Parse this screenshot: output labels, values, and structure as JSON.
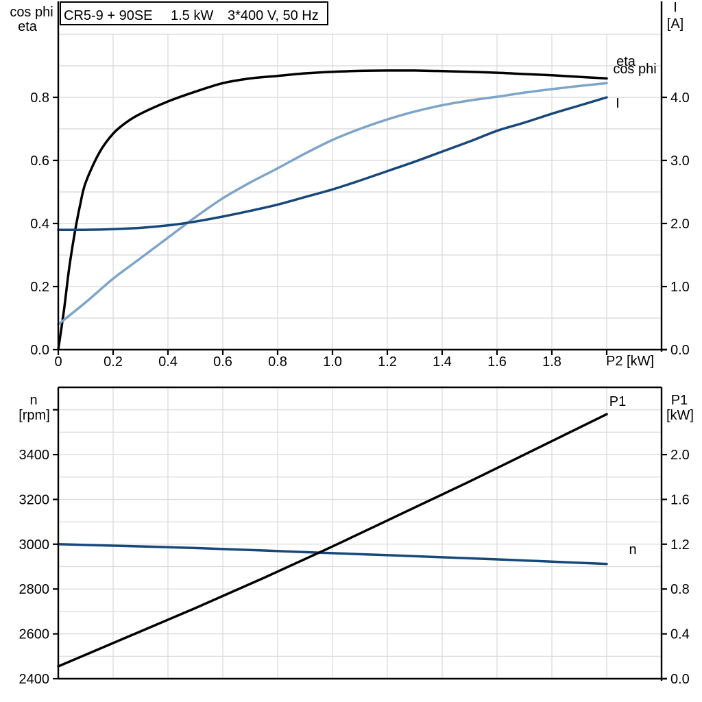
{
  "title_box": {
    "model": "CR5-9 + 90SE",
    "power": "1.5 kW",
    "voltage": "3*400 V, 50 Hz"
  },
  "colors": {
    "eta": "#000000",
    "cos_phi": "#7da4c9",
    "current": "#17487b",
    "speed": "#17487b",
    "p1": "#000000",
    "grid": "#d8d8d8",
    "axis": "#000000"
  },
  "chart_data": [
    {
      "id": "motor-efficiency-chart",
      "type": "line",
      "title": "CR5-9 + 90SE   1.5 kW   3*400 V, 50 Hz",
      "xlabel": "P2 [kW]",
      "ylabel_left": [
        "cos phi",
        "eta"
      ],
      "ylabel_right": [
        "I",
        "[A]"
      ],
      "xlim": [
        0,
        2.2
      ],
      "ylim_left": [
        0,
        1.0
      ],
      "ylim_right": [
        0,
        5.0
      ],
      "legend_position": "curve-end-labels",
      "grid": true,
      "x_ticks": [
        {
          "v": 0.0,
          "label": "0"
        },
        {
          "v": 0.2,
          "label": "0.2"
        },
        {
          "v": 0.4,
          "label": "0.4"
        },
        {
          "v": 0.6,
          "label": "0.6"
        },
        {
          "v": 0.8,
          "label": "0.8"
        },
        {
          "v": 1.0,
          "label": "1.0"
        },
        {
          "v": 1.2,
          "label": "1.2"
        },
        {
          "v": 1.4,
          "label": "1.4"
        },
        {
          "v": 1.6,
          "label": "1.6"
        },
        {
          "v": 1.8,
          "label": "1.8"
        },
        {
          "v": 2.0,
          "label": ""
        }
      ],
      "left_ticks": [
        {
          "v": 0.0,
          "label": "0.0"
        },
        {
          "v": 0.2,
          "label": "0.2"
        },
        {
          "v": 0.4,
          "label": "0.4"
        },
        {
          "v": 0.6,
          "label": "0.6"
        },
        {
          "v": 0.8,
          "label": "0.8"
        }
      ],
      "right_ticks": [
        {
          "v": 0.0,
          "label": "0.0"
        },
        {
          "v": 1.0,
          "label": "1.0"
        },
        {
          "v": 2.0,
          "label": "2.0"
        },
        {
          "v": 3.0,
          "label": "3.0"
        },
        {
          "v": 4.0,
          "label": "4.0"
        }
      ],
      "grid_x": [
        0.2,
        0.4,
        0.6,
        0.8,
        1.0,
        1.2,
        1.4,
        1.6,
        1.8,
        2.0
      ],
      "grid_y_left": [
        0.1,
        0.2,
        0.3,
        0.4,
        0.5,
        0.6,
        0.7,
        0.8,
        0.9,
        1.0
      ],
      "series": [
        {
          "name": "eta",
          "label": "eta",
          "axis": "left",
          "color_key": "eta",
          "x": [
            0,
            0.02,
            0.04,
            0.06,
            0.08,
            0.1,
            0.15,
            0.2,
            0.25,
            0.3,
            0.4,
            0.5,
            0.6,
            0.7,
            0.8,
            0.9,
            1.0,
            1.1,
            1.2,
            1.3,
            1.4,
            1.5,
            1.6,
            1.7,
            1.8,
            1.9,
            2.0
          ],
          "y": [
            0,
            0.12,
            0.26,
            0.37,
            0.46,
            0.53,
            0.625,
            0.685,
            0.722,
            0.748,
            0.787,
            0.818,
            0.845,
            0.86,
            0.868,
            0.876,
            0.881,
            0.884,
            0.885,
            0.885,
            0.883,
            0.881,
            0.878,
            0.874,
            0.87,
            0.865,
            0.86
          ]
        },
        {
          "name": "cos phi",
          "label": "cos phi",
          "axis": "left",
          "color_key": "cos_phi",
          "x": [
            0,
            0.1,
            0.2,
            0.3,
            0.4,
            0.5,
            0.6,
            0.7,
            0.8,
            0.9,
            1.0,
            1.1,
            1.2,
            1.3,
            1.4,
            1.5,
            1.6,
            1.7,
            1.8,
            1.9,
            2.0
          ],
          "y": [
            0.08,
            0.15,
            0.225,
            0.29,
            0.355,
            0.42,
            0.48,
            0.53,
            0.575,
            0.622,
            0.665,
            0.7,
            0.73,
            0.755,
            0.775,
            0.79,
            0.802,
            0.815,
            0.826,
            0.836,
            0.845
          ]
        },
        {
          "name": "I",
          "label": "I",
          "axis": "right",
          "color_key": "current",
          "x": [
            0,
            0.1,
            0.2,
            0.3,
            0.4,
            0.5,
            0.6,
            0.7,
            0.8,
            0.9,
            1.0,
            1.1,
            1.2,
            1.3,
            1.4,
            1.5,
            1.6,
            1.7,
            1.8,
            1.9,
            2.0
          ],
          "y": [
            1.9,
            1.9,
            1.91,
            1.93,
            1.97,
            2.03,
            2.11,
            2.2,
            2.3,
            2.42,
            2.54,
            2.68,
            2.83,
            2.98,
            3.14,
            3.3,
            3.47,
            3.6,
            3.74,
            3.87,
            4.0
          ]
        }
      ]
    },
    {
      "id": "speed-power-chart",
      "type": "line",
      "title": "",
      "xlabel": "",
      "ylabel_left": [
        "n",
        "[rpm]"
      ],
      "ylabel_right": [
        "P1",
        "[kW]"
      ],
      "xlim": [
        0,
        2.2
      ],
      "ylim_left": [
        2400,
        3700
      ],
      "ylim_right": [
        0,
        2.6
      ],
      "legend_position": "curve-end-labels",
      "grid": true,
      "x_ticks": [],
      "left_ticks": [
        {
          "v": 2400,
          "label": "2400"
        },
        {
          "v": 2600,
          "label": "2600"
        },
        {
          "v": 2800,
          "label": "2800"
        },
        {
          "v": 3000,
          "label": "3000"
        },
        {
          "v": 3200,
          "label": "3200"
        },
        {
          "v": 3400,
          "label": "3400"
        },
        {
          "v": 3600,
          "label": ""
        }
      ],
      "right_ticks": [
        {
          "v": 0.0,
          "label": "0.0"
        },
        {
          "v": 0.4,
          "label": "0.4"
        },
        {
          "v": 0.8,
          "label": "0.8"
        },
        {
          "v": 1.2,
          "label": "1.2"
        },
        {
          "v": 1.6,
          "label": "1.6"
        },
        {
          "v": 2.0,
          "label": "2.0"
        }
      ],
      "grid_x": [
        0.2,
        0.4,
        0.6,
        0.8,
        1.0,
        1.2,
        1.4,
        1.6,
        1.8,
        2.0
      ],
      "grid_y_left": [
        2500,
        2600,
        2700,
        2800,
        2900,
        3000,
        3100,
        3200,
        3300,
        3400,
        3500,
        3600
      ],
      "series": [
        {
          "name": "n",
          "label": "n",
          "axis": "left",
          "color_key": "speed",
          "x": [
            0,
            0.25,
            0.5,
            0.75,
            1.0,
            1.25,
            1.5,
            1.75,
            2.0
          ],
          "y": [
            3000,
            2992,
            2983,
            2972,
            2960,
            2949,
            2937,
            2925,
            2912
          ]
        },
        {
          "name": "P1",
          "label": "P1",
          "axis": "right",
          "color_key": "p1",
          "x": [
            0,
            0.25,
            0.5,
            0.75,
            1.0,
            1.25,
            1.5,
            1.75,
            2.0
          ],
          "y": [
            0.11,
            0.37,
            0.63,
            0.9,
            1.18,
            1.47,
            1.76,
            2.06,
            2.36
          ]
        }
      ]
    }
  ]
}
